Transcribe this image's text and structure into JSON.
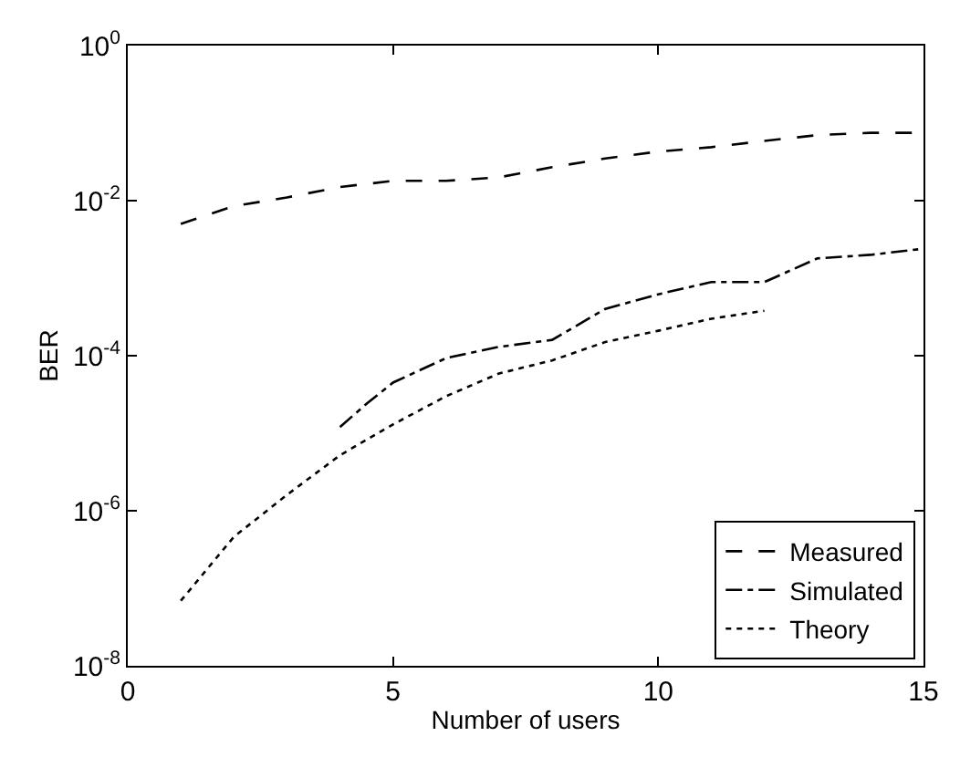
{
  "chart_data": {
    "type": "line",
    "xlabel": "Number of users",
    "ylabel": "BER",
    "log": "y",
    "legend": "bottom right",
    "marker": "none",
    "xlim": [
      0,
      15
    ],
    "xticks": [
      0,
      5,
      10,
      15
    ],
    "ylim": [
      1e-08,
      1
    ],
    "yticks": [
      {
        "value": 1e-08,
        "label": "10$^{-8}$"
      },
      {
        "value": 1e-06,
        "label": "10$^{-6}$"
      },
      {
        "value": 0.0001,
        "label": "10$^{-4}$"
      },
      {
        "value": 0.01,
        "label": "10$^{-2}$"
      },
      {
        "value": 1,
        "label": "10$^{0}$"
      }
    ],
    "series": [
      {
        "name": "Measured",
        "color": "#000000",
        "line_style": "dashed",
        "x": [
          1,
          2,
          3,
          4,
          5,
          6,
          7,
          8,
          9,
          10,
          11,
          12,
          13,
          14,
          15
        ],
        "values": [
          0.005,
          0.0085,
          0.011,
          0.015,
          0.018,
          0.018,
          0.02,
          0.027,
          0.035,
          0.043,
          0.049,
          0.059,
          0.07,
          0.075,
          0.075
        ]
      },
      {
        "name": "Simulated",
        "color": "#000000",
        "line_style": "dashdot",
        "x": [
          4,
          4.5,
          5,
          6,
          7,
          8,
          9,
          10,
          11,
          12,
          13,
          14,
          15
        ],
        "values": [
          1.2e-05,
          2.4e-05,
          4.5e-05,
          9.3e-05,
          0.00013,
          0.00016,
          0.0004,
          0.00062,
          0.00089,
          0.00089,
          0.0018,
          0.002,
          0.0024
        ]
      },
      {
        "name": "Theory",
        "color": "#000000",
        "line_style": "dotted",
        "x": [
          1,
          2,
          3,
          4,
          5,
          6,
          7,
          8,
          9,
          10,
          11,
          12
        ],
        "values": [
          6.9e-08,
          4.6e-07,
          1.6e-06,
          5.2e-06,
          1.3e-05,
          3e-05,
          5.9e-05,
          8.7e-05,
          0.00015,
          0.00021,
          0.0003,
          0.00038
        ]
      }
    ]
  }
}
